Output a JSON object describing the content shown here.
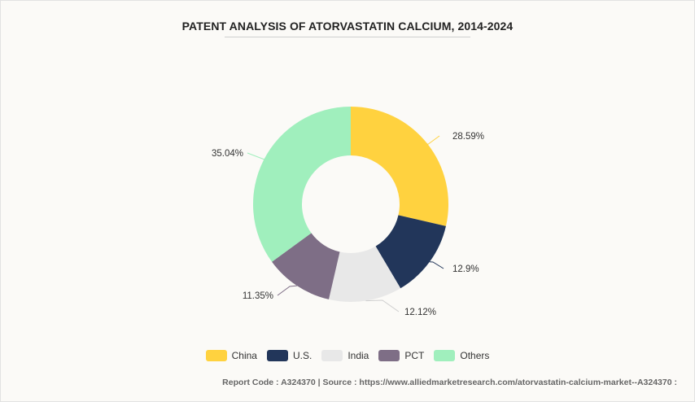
{
  "title": "PATENT ANALYSIS OF ATORVASTATIN CALCIUM, 2014-2024",
  "footer": "Report Code : A324370  |  Source : https://www.alliedmarketresearch.com/atorvastatin-calcium-market--A324370 :",
  "chart_data": {
    "type": "pie",
    "donut": true,
    "title": "PATENT ANALYSIS OF ATORVASTATIN CALCIUM, 2014-2024",
    "legend_position": "bottom",
    "slices": [
      {
        "label": "China",
        "value": 28.59,
        "display": "28.59%",
        "color": "#ffd23f"
      },
      {
        "label": "U.S.",
        "value": 12.9,
        "display": "12.9%",
        "color": "#22365a"
      },
      {
        "label": "India",
        "value": 12.12,
        "display": "12.12%",
        "color": "#e8e8e8"
      },
      {
        "label": "PCT",
        "value": 11.35,
        "display": "11.35%",
        "color": "#7e6e86"
      },
      {
        "label": "Others",
        "value": 35.04,
        "display": "35.04%",
        "color": "#a0efbd"
      }
    ]
  }
}
